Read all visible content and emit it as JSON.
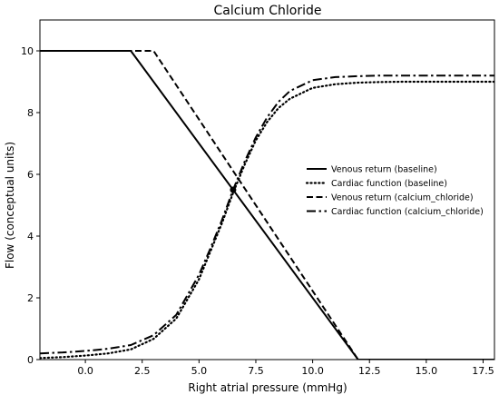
{
  "chart_data": {
    "type": "line",
    "title": "Calcium Chloride",
    "xlabel": "Right atrial pressure (mmHg)",
    "ylabel": "Flow (conceptual units)",
    "xlim": [
      -2,
      18
    ],
    "ylim": [
      0,
      11
    ],
    "x_ticks": [
      0.0,
      2.5,
      5.0,
      7.5,
      10.0,
      12.5,
      15.0,
      17.5
    ],
    "x_tick_labels": [
      "0.0",
      "2.5",
      "5.0",
      "7.5",
      "10.0",
      "12.5",
      "15.0",
      "17.5"
    ],
    "y_ticks": [
      0,
      2,
      4,
      6,
      8,
      10
    ],
    "y_tick_labels": [
      "0",
      "2",
      "4",
      "6",
      "8",
      "10"
    ],
    "grid": false,
    "legend_position": "center-right",
    "series": [
      {
        "name": "Venous return (baseline)",
        "style": "solid",
        "color": "#000000",
        "x": [
          -2,
          2,
          12,
          18
        ],
        "y": [
          10,
          10,
          0,
          0
        ]
      },
      {
        "name": "Cardiac function (baseline)",
        "style": "dotted",
        "color": "#000000",
        "x": [
          -2,
          -1,
          0,
          1,
          2,
          3,
          4,
          5,
          5.5,
          6,
          6.5,
          7,
          7.5,
          8,
          8.5,
          9,
          10,
          11,
          12,
          13,
          14,
          15,
          16,
          18
        ],
        "y": [
          0.05,
          0.08,
          0.13,
          0.2,
          0.33,
          0.67,
          1.33,
          2.6,
          3.5,
          4.4,
          5.4,
          6.3,
          7.1,
          7.7,
          8.15,
          8.45,
          8.8,
          8.92,
          8.97,
          8.99,
          9.0,
          9.0,
          9.0,
          9.0
        ]
      },
      {
        "name": "Venous return (calcium_chloride)",
        "style": "dashed",
        "color": "#000000",
        "x": [
          -2,
          3,
          12,
          18
        ],
        "y": [
          10,
          10,
          0,
          0
        ]
      },
      {
        "name": "Cardiac function (calcium_chloride)",
        "style": "dashdot",
        "color": "#000000",
        "x": [
          -2,
          -1,
          0,
          1,
          2,
          3,
          4,
          5,
          5.5,
          6,
          6.5,
          7,
          7.5,
          8,
          8.5,
          9,
          10,
          11,
          12,
          13,
          14,
          15,
          16,
          18
        ],
        "y": [
          0.2,
          0.23,
          0.28,
          0.35,
          0.47,
          0.79,
          1.45,
          2.75,
          3.6,
          4.5,
          5.5,
          6.4,
          7.2,
          7.85,
          8.35,
          8.7,
          9.05,
          9.15,
          9.18,
          9.2,
          9.2,
          9.2,
          9.2,
          9.2
        ]
      }
    ],
    "markers": [
      {
        "x": 6.5,
        "y": 5.5
      }
    ]
  }
}
